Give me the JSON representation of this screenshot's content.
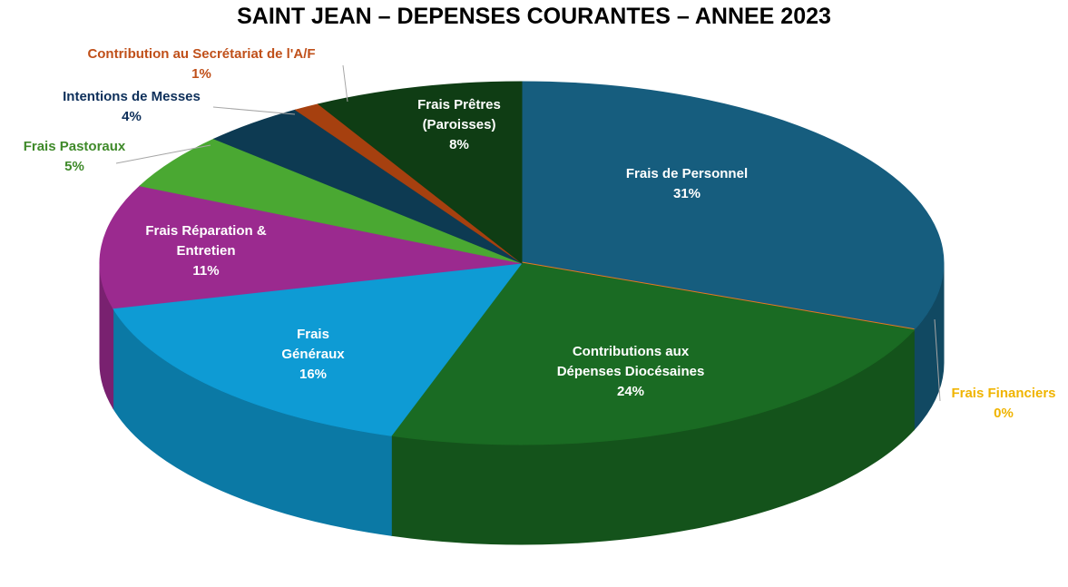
{
  "chart_data": {
    "type": "pie3d",
    "title": "SAINT JEAN – DEPENSES COURANTES – ANNEE 2023",
    "categories": [
      "Frais de Personnel",
      "Frais Financiers",
      "Contributions aux Dépenses Diocésaines",
      "Frais Généraux",
      "Frais Réparation & Entretien",
      "Frais Pastoraux",
      "Intentions de Messes",
      "Contribution au Secrétariat de l'A/F",
      "Frais Prêtres (Paroisses)"
    ],
    "values": [
      31,
      0,
      24,
      16,
      11,
      5,
      4,
      1,
      8
    ],
    "value_labels": [
      "31%",
      "0%",
      "24%",
      "16%",
      "11%",
      "5%",
      "4%",
      "1%",
      "8%"
    ],
    "colors": [
      "#165d7e",
      "#e87722",
      "#1a6b23",
      "#0e9bd4",
      "#9b2a8f",
      "#4aa832",
      "#0d3a52",
      "#a6400f",
      "#0f3d14"
    ],
    "label_colors": [
      "#ffffff",
      "#f0b400",
      "#ffffff",
      "#ffffff",
      "#ffffff",
      "#3f8a2a",
      "#0d2f5a",
      "#c0501a",
      "#ffffff"
    ]
  }
}
